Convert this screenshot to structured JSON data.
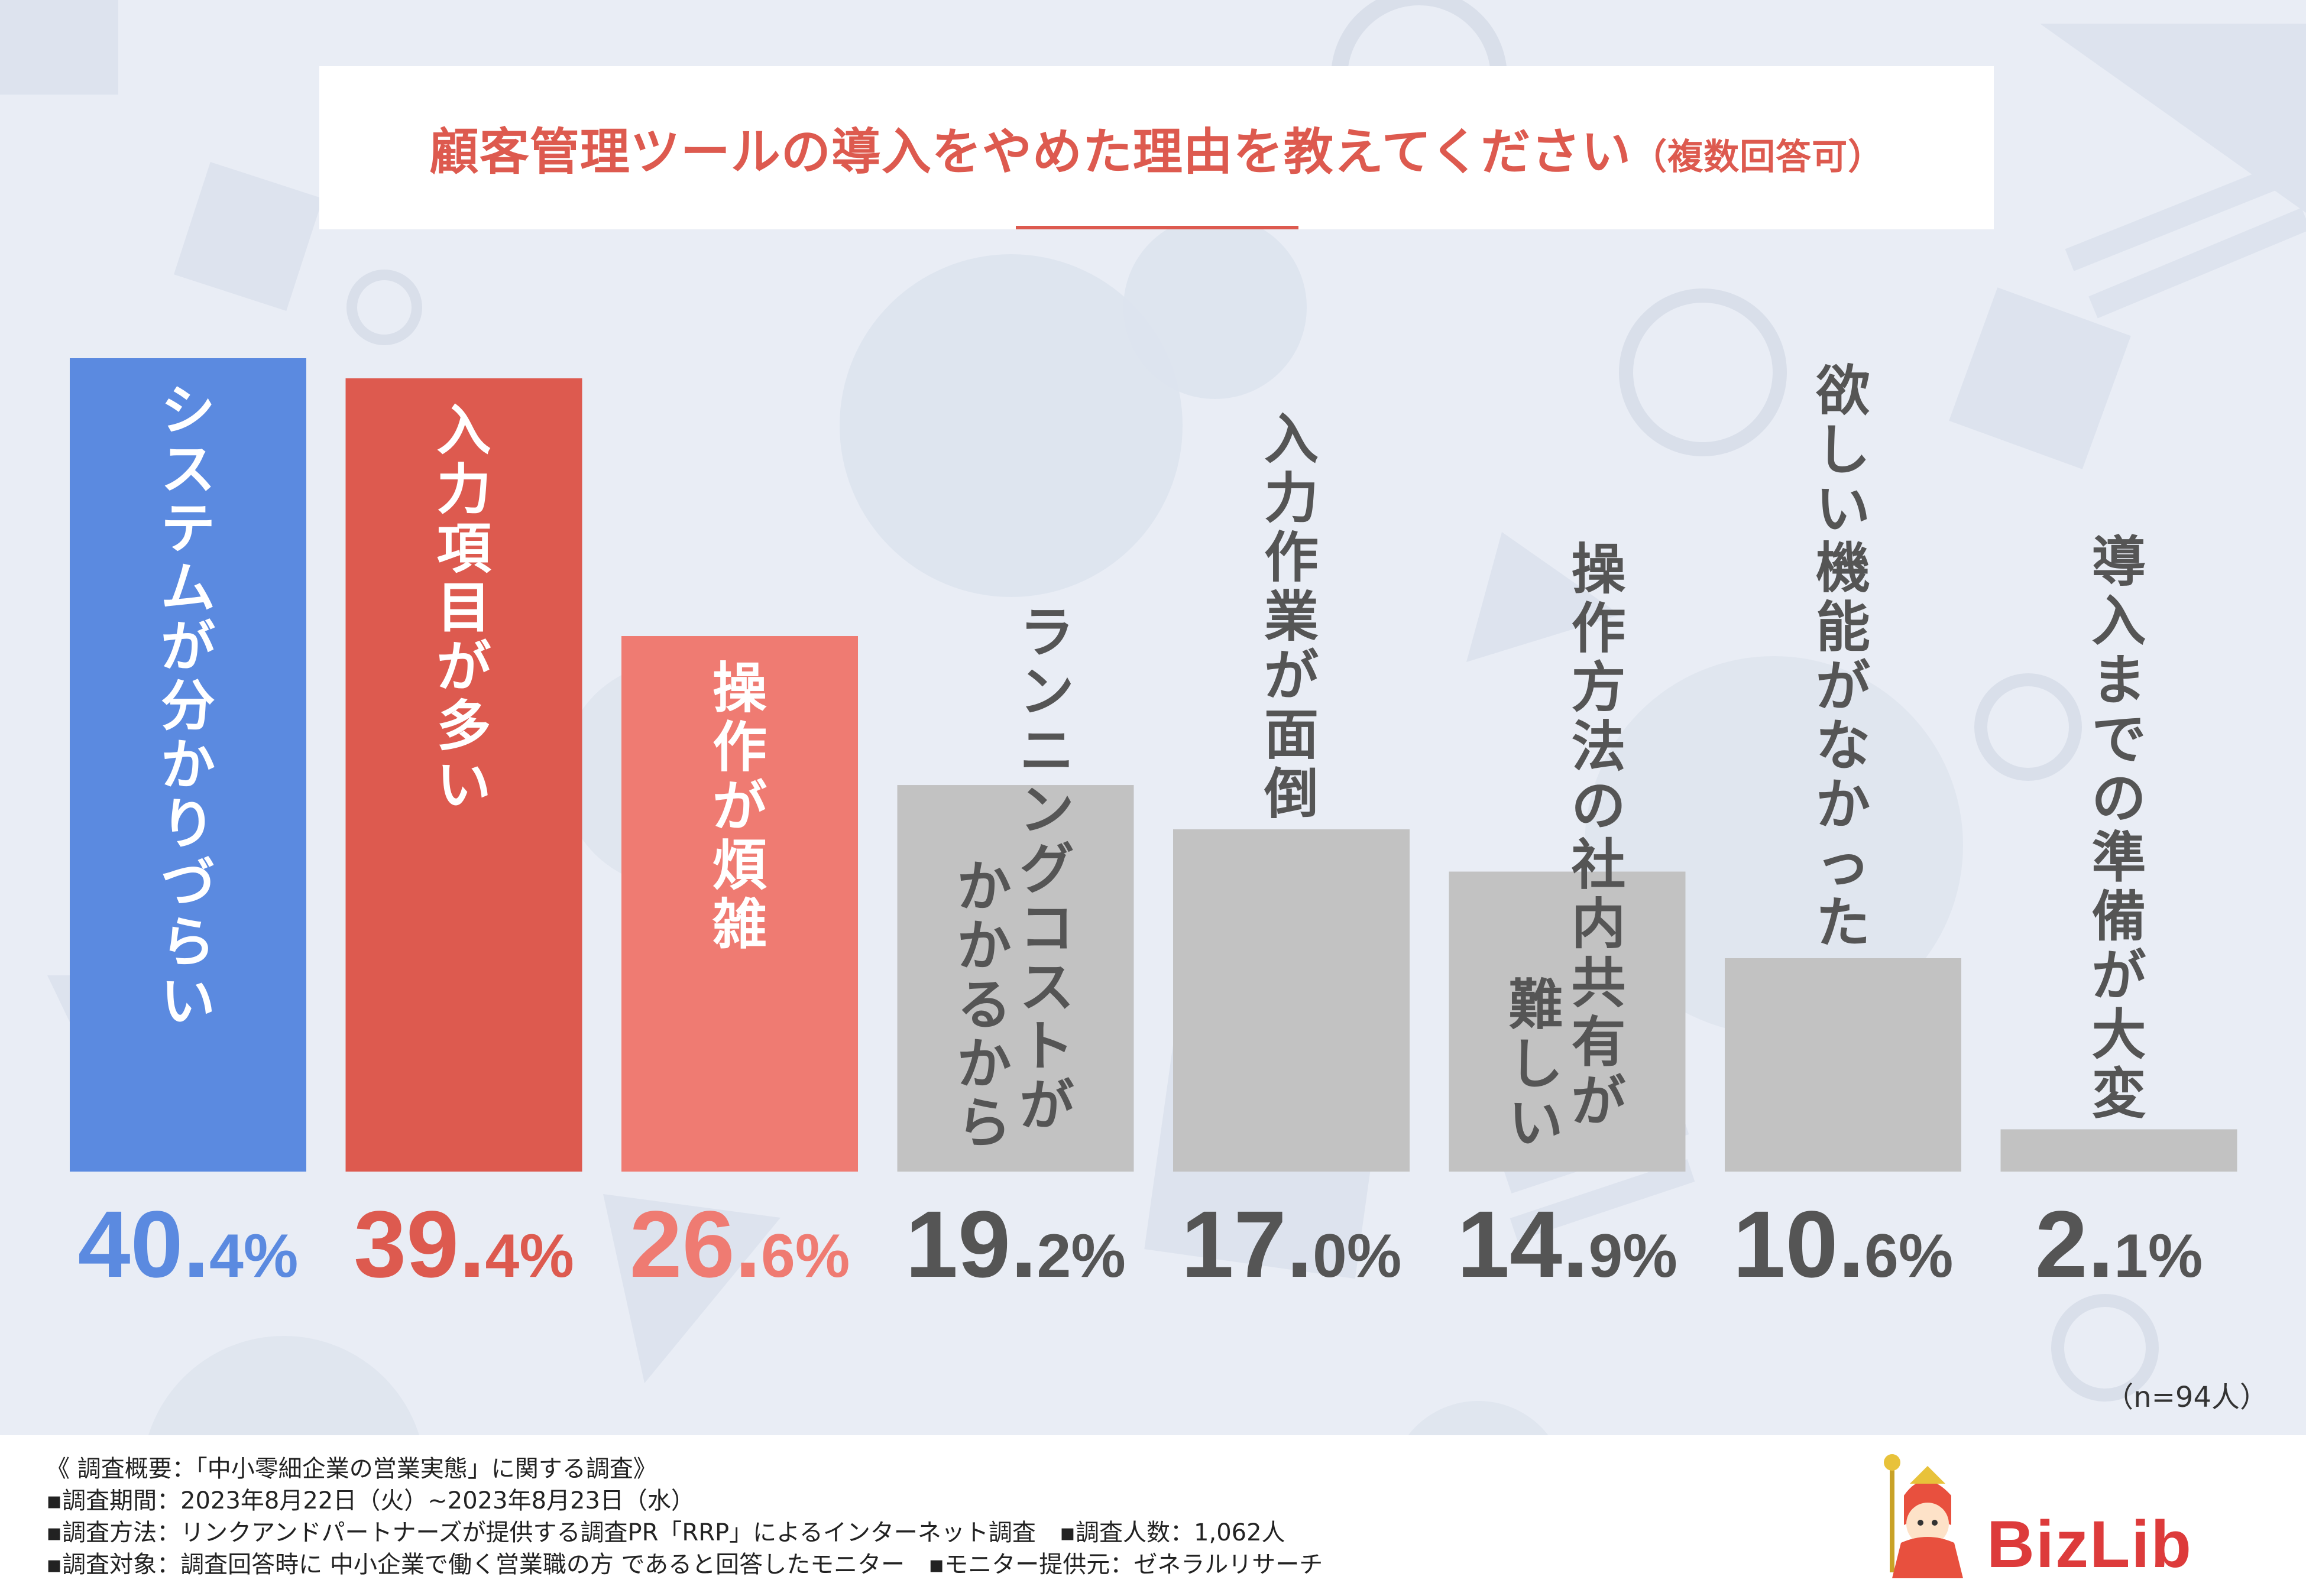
{
  "title": {
    "main": "顧客管理ツールの導入をやめた理由を教えてください",
    "note": "（複数回答可）"
  },
  "colors": {
    "accent": "#dd5a4f",
    "bar_blue": "#5b8ae0",
    "bar_red": "#dd5a4f",
    "bar_pink": "#ef7b72",
    "bar_gray": "#c2c2c2",
    "value_gray": "#555555"
  },
  "chart_data": {
    "type": "bar",
    "title": "顧客管理ツールの導入をやめた理由を教えてください（複数回答可）",
    "categories": [
      "システムが分かりづらい",
      "入力項目が多い",
      "操作が煩雑",
      "ランニングコストがかかるから",
      "入力作業が面倒",
      "操作方法の社内共有が難しい",
      "欲しい機能がなかった",
      "導入までの準備が大変"
    ],
    "label_lines": [
      [
        "システムが分かりづらい"
      ],
      [
        "入力項目が多い"
      ],
      [
        "操作が煩雑"
      ],
      [
        "ランニングコストが",
        "かかるから"
      ],
      [
        "入力作業が面倒"
      ],
      [
        "操作方法の社内共有が",
        "難しい"
      ],
      [
        "欲しい機能がなかった"
      ],
      [
        "導入までの準備が大変"
      ]
    ],
    "values": [
      40.4,
      39.4,
      26.6,
      19.2,
      17.0,
      14.9,
      10.6,
      2.1
    ],
    "value_labels": [
      {
        "num": "40.",
        "dec": "4%"
      },
      {
        "num": "39.",
        "dec": "4%"
      },
      {
        "num": "26.",
        "dec": "6%"
      },
      {
        "num": "19.",
        "dec": "2%"
      },
      {
        "num": "17.",
        "dec": "0%"
      },
      {
        "num": "14.",
        "dec": "9%"
      },
      {
        "num": "10.",
        "dec": "6%"
      },
      {
        "num": "2.",
        "dec": "1%"
      }
    ],
    "bar_colors": [
      "#5b8ae0",
      "#dd5a4f",
      "#ef7b72",
      "#c2c2c2",
      "#c2c2c2",
      "#c2c2c2",
      "#c2c2c2",
      "#c2c2c2"
    ],
    "label_colors": [
      "#ffffff",
      "#ffffff",
      "#ffffff",
      "#555555",
      "#555555",
      "#555555",
      "#555555",
      "#555555"
    ],
    "value_colors": [
      "#5b8ae0",
      "#dd5a4f",
      "#ef7b72",
      "#555555",
      "#555555",
      "#555555",
      "#555555",
      "#555555"
    ],
    "ylim": [
      0,
      40.4
    ],
    "unit": "%"
  },
  "sample_size": "（n=94人）",
  "footer": {
    "lines": [
      "《 調査概要：「中小零細企業の営業実態」に関する調査》",
      "▪調査期間：2023年8月22日（火）~2023年8月23日（水）",
      "▪調査方法：リンクアンドパートナーズが提供する調査PR「RRP」によるインターネット調査　▪調査人数：1,062人",
      "▪調査対象：調査回答時に 中小企業で働く営業職の方 であると回答したモニター　▪モニター提供元：ゼネラルリサーチ"
    ],
    "logo_text": "BizLib"
  }
}
